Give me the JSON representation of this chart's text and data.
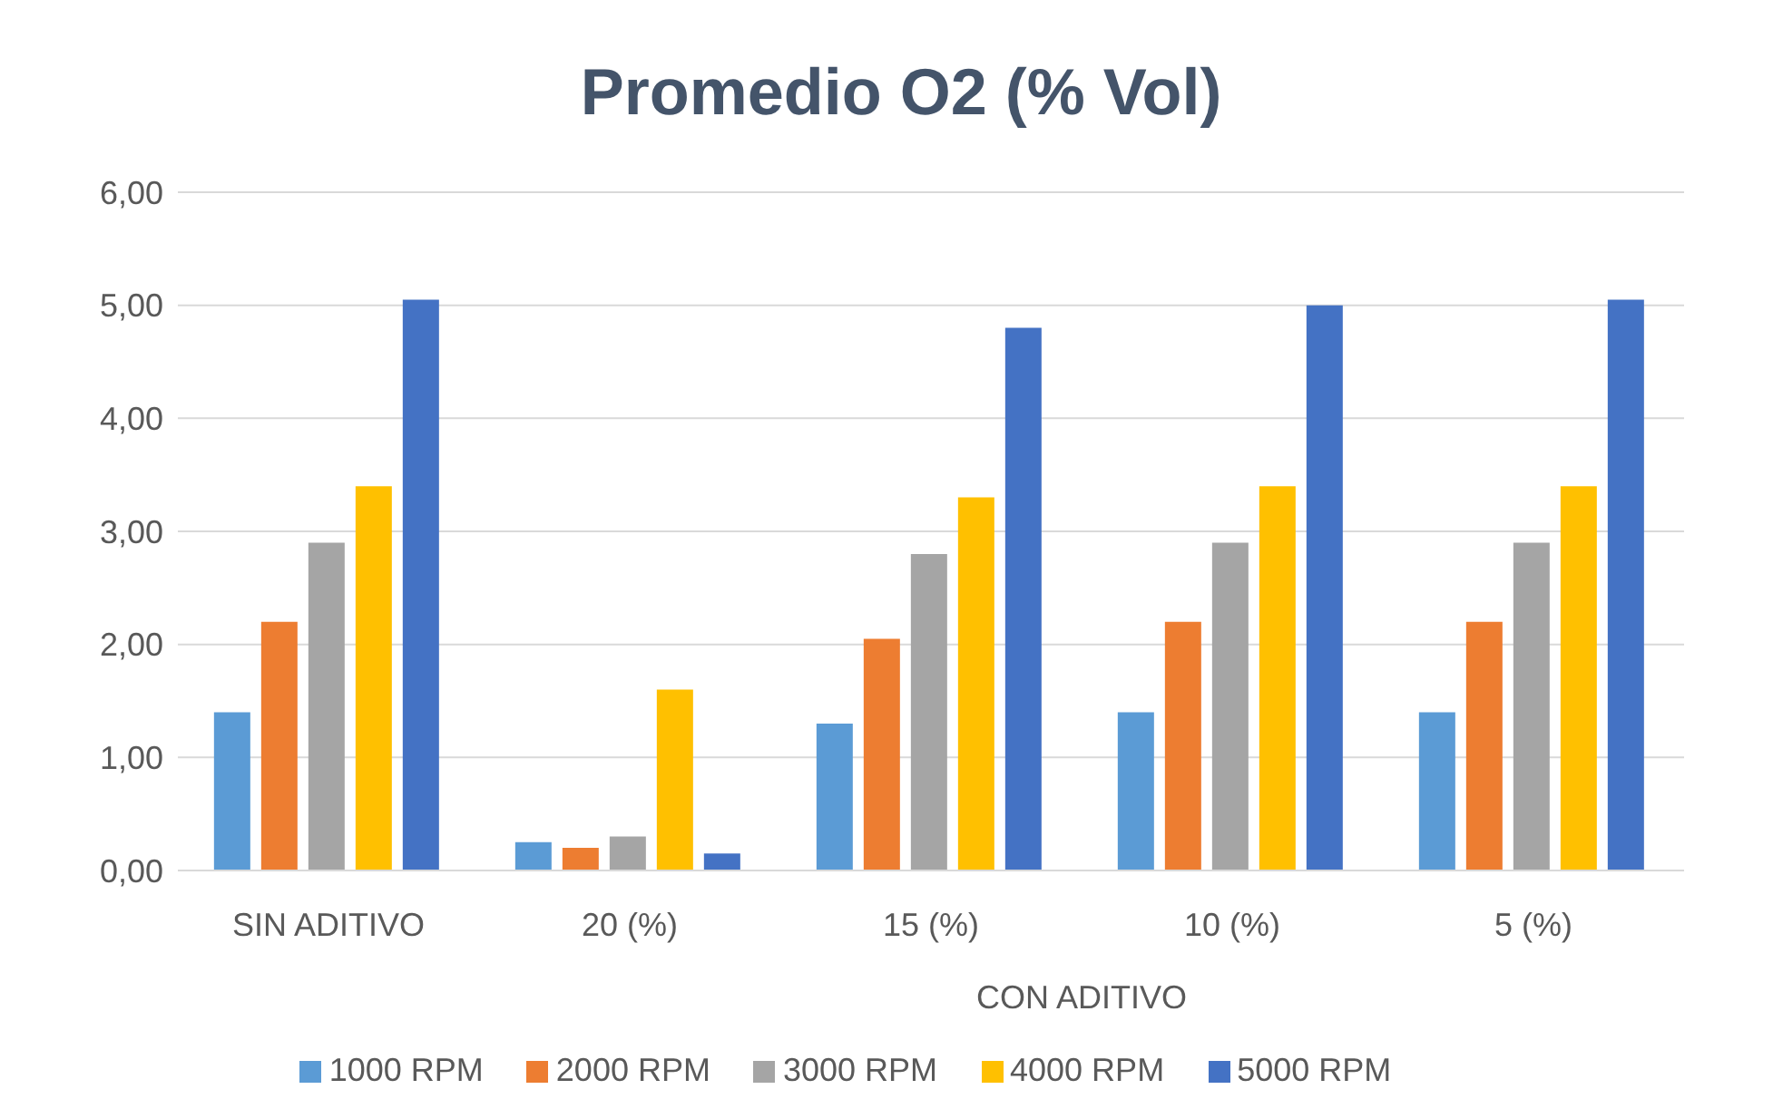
{
  "chart_data": {
    "type": "bar",
    "title": "Promedio O2 (% Vol)",
    "categories": [
      "SIN ADITIVO",
      "20 (%)",
      "15 (%)",
      "10 (%)",
      "5 (%)"
    ],
    "annotations": [
      "CON ADITIVO"
    ],
    "series": [
      {
        "name": "1000 RPM",
        "color": "#5b9bd5",
        "values": [
          1.4,
          0.25,
          1.3,
          1.4,
          1.4
        ]
      },
      {
        "name": "2000 RPM",
        "color": "#ed7d31",
        "values": [
          2.2,
          0.2,
          2.05,
          2.2,
          2.2
        ]
      },
      {
        "name": "3000 RPM",
        "color": "#a5a5a5",
        "values": [
          2.9,
          0.3,
          2.8,
          2.9,
          2.9
        ]
      },
      {
        "name": "4000 RPM",
        "color": "#ffc000",
        "values": [
          3.4,
          1.6,
          3.3,
          3.4,
          3.4
        ]
      },
      {
        "name": "5000 RPM",
        "color": "#4472c4",
        "values": [
          5.05,
          0.15,
          4.8,
          5.0,
          5.05
        ]
      }
    ],
    "ylim": [
      0,
      6
    ],
    "yticks": [
      {
        "value": 0,
        "label": "0,00"
      },
      {
        "value": 1,
        "label": "1,00"
      },
      {
        "value": 2,
        "label": "2,00"
      },
      {
        "value": 3,
        "label": "3,00"
      },
      {
        "value": 4,
        "label": "4,00"
      },
      {
        "value": 5,
        "label": "5,00"
      },
      {
        "value": 6,
        "label": "6,00"
      }
    ],
    "grid": "y",
    "legend": "bottom"
  }
}
